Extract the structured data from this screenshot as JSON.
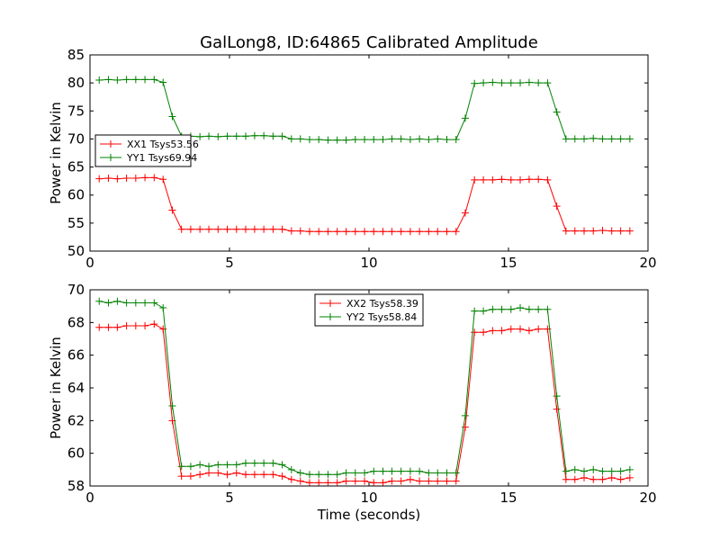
{
  "chart_data": [
    {
      "type": "line",
      "title": "GalLong8, ID:64865 Calibrated Amplitude",
      "xlabel": "",
      "ylabel": "Power in Kelvin",
      "xlim": [
        0,
        20
      ],
      "ylim": [
        50,
        85
      ],
      "xticks": [
        "0",
        "5",
        "10",
        "15",
        "20"
      ],
      "yticks": [
        "50",
        "55",
        "60",
        "65",
        "70",
        "75",
        "80",
        "85"
      ],
      "grid": false,
      "legend": "left-middle",
      "x": [
        0.33,
        0.66,
        0.98,
        1.31,
        1.64,
        1.97,
        2.3,
        2.62,
        2.95,
        3.28,
        3.61,
        3.94,
        4.26,
        4.59,
        4.92,
        5.25,
        5.58,
        5.9,
        6.23,
        6.56,
        6.89,
        7.22,
        7.54,
        7.87,
        8.2,
        8.53,
        8.86,
        9.18,
        9.51,
        9.84,
        10.17,
        10.5,
        10.82,
        11.15,
        11.48,
        11.81,
        12.14,
        12.46,
        12.79,
        13.12,
        13.45,
        13.78,
        14.1,
        14.43,
        14.76,
        15.09,
        15.42,
        15.74,
        16.07,
        16.4,
        16.73,
        17.06,
        17.38,
        17.71,
        18.04,
        18.37,
        18.7,
        19.02,
        19.35
      ],
      "series": [
        {
          "name": "XX1 Tsys53.56",
          "color": "#ff0000",
          "values": [
            62.9,
            63.0,
            62.9,
            63.0,
            63.0,
            63.1,
            63.1,
            62.8,
            57.3,
            53.9,
            53.9,
            53.9,
            53.9,
            53.9,
            53.9,
            53.9,
            53.9,
            53.9,
            53.9,
            53.9,
            53.9,
            53.6,
            53.6,
            53.5,
            53.5,
            53.5,
            53.5,
            53.5,
            53.5,
            53.5,
            53.5,
            53.5,
            53.5,
            53.5,
            53.5,
            53.5,
            53.5,
            53.5,
            53.5,
            53.5,
            56.8,
            62.7,
            62.7,
            62.7,
            62.8,
            62.7,
            62.7,
            62.8,
            62.8,
            62.7,
            58.0,
            53.6,
            53.6,
            53.6,
            53.6,
            53.7,
            53.6,
            53.6,
            53.6
          ]
        },
        {
          "name": "YY1 Tsys69.94",
          "color": "#008000",
          "values": [
            80.5,
            80.6,
            80.5,
            80.6,
            80.6,
            80.6,
            80.6,
            80.1,
            74.0,
            70.5,
            70.5,
            70.4,
            70.5,
            70.4,
            70.5,
            70.5,
            70.5,
            70.6,
            70.6,
            70.5,
            70.5,
            70.0,
            70.0,
            69.9,
            69.9,
            69.8,
            69.8,
            69.8,
            69.9,
            69.9,
            69.9,
            69.9,
            70.0,
            70.0,
            69.9,
            70.0,
            69.9,
            70.0,
            69.9,
            69.9,
            73.7,
            79.9,
            80.0,
            80.1,
            80.0,
            80.0,
            80.0,
            80.1,
            80.0,
            80.0,
            74.8,
            70.0,
            70.0,
            70.0,
            70.1,
            70.0,
            70.0,
            70.0,
            70.0
          ]
        }
      ]
    },
    {
      "type": "line",
      "title": "",
      "xlabel": "Time (seconds)",
      "ylabel": "Power in Kelvin",
      "xlim": [
        0,
        20
      ],
      "ylim": [
        58,
        70
      ],
      "xticks": [
        "0",
        "5",
        "10",
        "15",
        "20"
      ],
      "yticks": [
        "58",
        "60",
        "62",
        "64",
        "66",
        "68",
        "70"
      ],
      "grid": false,
      "legend": "top-center",
      "x": [
        0.33,
        0.66,
        0.98,
        1.31,
        1.64,
        1.97,
        2.3,
        2.62,
        2.95,
        3.28,
        3.61,
        3.94,
        4.26,
        4.59,
        4.92,
        5.25,
        5.58,
        5.9,
        6.23,
        6.56,
        6.89,
        7.22,
        7.54,
        7.87,
        8.2,
        8.53,
        8.86,
        9.18,
        9.51,
        9.84,
        10.17,
        10.5,
        10.82,
        11.15,
        11.48,
        11.81,
        12.14,
        12.46,
        12.79,
        13.12,
        13.45,
        13.78,
        14.1,
        14.43,
        14.76,
        15.09,
        15.42,
        15.74,
        16.07,
        16.4,
        16.73,
        17.06,
        17.38,
        17.71,
        18.04,
        18.37,
        18.7,
        19.02,
        19.35
      ],
      "series": [
        {
          "name": "XX2 Tsys58.39",
          "color": "#ff0000",
          "values": [
            67.7,
            67.7,
            67.7,
            67.8,
            67.8,
            67.8,
            67.9,
            67.6,
            62.0,
            58.6,
            58.6,
            58.7,
            58.8,
            58.8,
            58.7,
            58.8,
            58.7,
            58.7,
            58.7,
            58.7,
            58.6,
            58.4,
            58.3,
            58.2,
            58.2,
            58.2,
            58.2,
            58.3,
            58.3,
            58.3,
            58.2,
            58.2,
            58.3,
            58.3,
            58.4,
            58.3,
            58.3,
            58.3,
            58.3,
            58.3,
            61.6,
            67.4,
            67.4,
            67.5,
            67.5,
            67.6,
            67.6,
            67.5,
            67.6,
            67.6,
            62.7,
            58.4,
            58.4,
            58.5,
            58.4,
            58.4,
            58.5,
            58.4,
            58.5
          ]
        },
        {
          "name": "YY2 Tsys58.84",
          "color": "#008000",
          "values": [
            69.3,
            69.2,
            69.3,
            69.2,
            69.2,
            69.2,
            69.2,
            68.9,
            62.9,
            59.2,
            59.2,
            59.3,
            59.2,
            59.3,
            59.3,
            59.3,
            59.4,
            59.4,
            59.4,
            59.4,
            59.3,
            59.0,
            58.8,
            58.7,
            58.7,
            58.7,
            58.7,
            58.8,
            58.8,
            58.8,
            58.9,
            58.9,
            58.9,
            58.9,
            58.9,
            58.9,
            58.8,
            58.8,
            58.8,
            58.8,
            62.3,
            68.7,
            68.7,
            68.8,
            68.8,
            68.8,
            68.9,
            68.8,
            68.8,
            68.8,
            63.5,
            58.9,
            59.0,
            58.9,
            59.0,
            58.9,
            58.9,
            58.9,
            59.0
          ]
        }
      ]
    }
  ]
}
